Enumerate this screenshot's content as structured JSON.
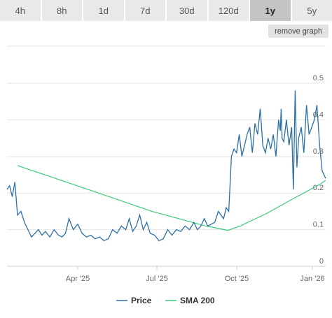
{
  "range_buttons": [
    {
      "label": "4h",
      "active": false
    },
    {
      "label": "8h",
      "active": false
    },
    {
      "label": "1d",
      "active": false
    },
    {
      "label": "7d",
      "active": false
    },
    {
      "label": "30d",
      "active": false
    },
    {
      "label": "120d",
      "active": false
    },
    {
      "label": "1y",
      "active": true
    },
    {
      "label": "5y",
      "active": false
    }
  ],
  "remove_graph_label": "remove graph",
  "colors": {
    "price": "#2c6fa6",
    "sma": "#3cc87a",
    "grid": "#e6e6e6"
  },
  "chart_data": {
    "type": "line",
    "title": "",
    "xlabel": "",
    "ylabel": "",
    "x_ticks": [
      "Apr '25",
      "Jul '25",
      "Oct '25",
      "Jan '26"
    ],
    "y_ticks": [
      0,
      0.1,
      0.2,
      0.3,
      0.4,
      0.5
    ],
    "ylim": [
      0,
      0.5
    ],
    "xlim": [
      "2025-01-16",
      "2026-01-16"
    ],
    "grid": true,
    "legend": {
      "position": "bottom-center",
      "entries": [
        "Price",
        "SMA 200"
      ]
    },
    "series": [
      {
        "name": "Price",
        "x": [
          "2025-01-16",
          "2025-01-19",
          "2025-01-22",
          "2025-01-25",
          "2025-01-28",
          "2025-02-01",
          "2025-02-05",
          "2025-02-09",
          "2025-02-13",
          "2025-02-17",
          "2025-02-21",
          "2025-02-25",
          "2025-03-01",
          "2025-03-06",
          "2025-03-11",
          "2025-03-16",
          "2025-03-20",
          "2025-03-24",
          "2025-03-28",
          "2025-04-02",
          "2025-04-07",
          "2025-04-12",
          "2025-04-17",
          "2025-04-22",
          "2025-04-27",
          "2025-05-02",
          "2025-05-07",
          "2025-05-12",
          "2025-05-17",
          "2025-05-22",
          "2025-05-27",
          "2025-06-01",
          "2025-06-05",
          "2025-06-09",
          "2025-06-13",
          "2025-06-17",
          "2025-06-21",
          "2025-06-25",
          "2025-06-29",
          "2025-07-04",
          "2025-07-09",
          "2025-07-14",
          "2025-07-19",
          "2025-07-24",
          "2025-07-29",
          "2025-08-03",
          "2025-08-08",
          "2025-08-13",
          "2025-08-18",
          "2025-08-22",
          "2025-08-26",
          "2025-08-30",
          "2025-09-03",
          "2025-09-07",
          "2025-09-11",
          "2025-09-15",
          "2025-09-18",
          "2025-09-21",
          "2025-09-24",
          "2025-09-27",
          "2025-09-30",
          "2025-10-03",
          "2025-10-06",
          "2025-10-09",
          "2025-10-12",
          "2025-10-15",
          "2025-10-18",
          "2025-10-21",
          "2025-10-24",
          "2025-10-27",
          "2025-10-30",
          "2025-11-02",
          "2025-11-05",
          "2025-11-08",
          "2025-11-11",
          "2025-11-14",
          "2025-11-17",
          "2025-11-20",
          "2025-11-23",
          "2025-11-25",
          "2025-11-26",
          "2025-11-27",
          "2025-11-29",
          "2025-12-02",
          "2025-12-05",
          "2025-12-08",
          "2025-12-10",
          "2025-12-12",
          "2025-12-14",
          "2025-12-16",
          "2025-12-19",
          "2025-12-22",
          "2025-12-25",
          "2025-12-28",
          "2025-12-31",
          "2026-01-03",
          "2026-01-06",
          "2026-01-09",
          "2026-01-12",
          "2026-01-16"
        ],
        "y": [
          0.21,
          0.22,
          0.19,
          0.23,
          0.14,
          0.15,
          0.12,
          0.1,
          0.08,
          0.09,
          0.1,
          0.085,
          0.095,
          0.08,
          0.1,
          0.085,
          0.08,
          0.09,
          0.13,
          0.1,
          0.115,
          0.09,
          0.08,
          0.085,
          0.075,
          0.08,
          0.07,
          0.075,
          0.1,
          0.09,
          0.11,
          0.1,
          0.13,
          0.095,
          0.11,
          0.14,
          0.1,
          0.12,
          0.09,
          0.085,
          0.07,
          0.075,
          0.1,
          0.085,
          0.1,
          0.095,
          0.11,
          0.1,
          0.12,
          0.1,
          0.11,
          0.13,
          0.11,
          0.115,
          0.12,
          0.15,
          0.14,
          0.13,
          0.16,
          0.15,
          0.3,
          0.32,
          0.31,
          0.36,
          0.3,
          0.33,
          0.36,
          0.38,
          0.31,
          0.39,
          0.36,
          0.43,
          0.33,
          0.31,
          0.35,
          0.32,
          0.36,
          0.3,
          0.4,
          0.37,
          0.43,
          0.35,
          0.34,
          0.4,
          0.33,
          0.38,
          0.21,
          0.48,
          0.27,
          0.35,
          0.38,
          0.31,
          0.44,
          0.36,
          0.38,
          0.4,
          0.44,
          0.33,
          0.26,
          0.24
        ]
      },
      {
        "name": "SMA 200",
        "x": [
          "2025-01-28",
          "2025-04-15",
          "2025-07-01",
          "2025-09-01",
          "2025-09-26",
          "2025-10-10",
          "2025-10-25",
          "2025-11-10",
          "2025-11-25",
          "2025-12-10",
          "2025-12-25",
          "2026-01-10",
          "2026-01-16"
        ],
        "y": [
          0.275,
          0.213,
          0.15,
          0.11,
          0.098,
          0.11,
          0.127,
          0.145,
          0.165,
          0.185,
          0.204,
          0.225,
          0.235
        ]
      }
    ]
  }
}
